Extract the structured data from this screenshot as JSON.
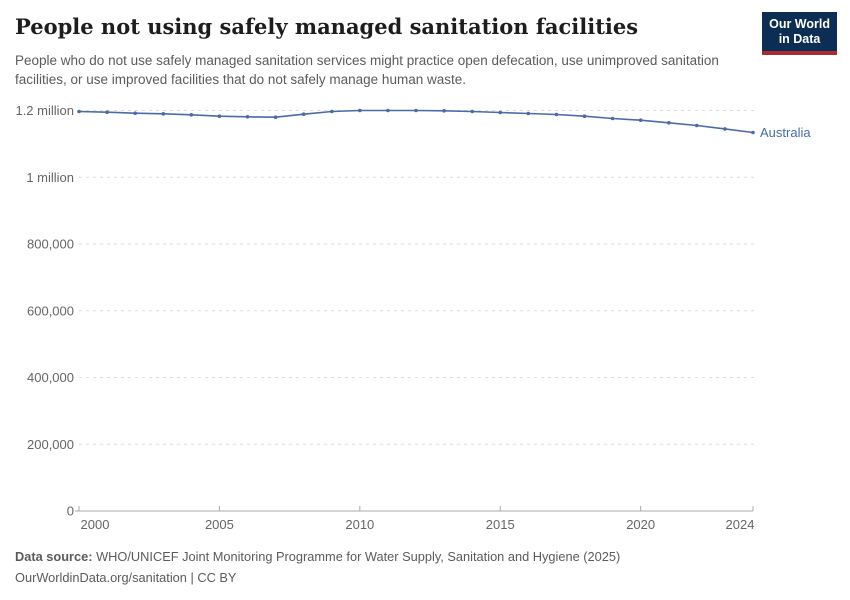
{
  "header": {
    "title": "People not using safely managed sanitation facilities",
    "subtitle": "People who do not use safely managed sanitation services might practice open defecation, use unimproved sanitation facilities, or use improved facilities that do not safely manage human waste.",
    "logo": {
      "line1": "Our World",
      "line2": "in Data",
      "bg_color": "#0d2e54",
      "accent_color": "#a82b35"
    }
  },
  "colors": {
    "series_blue": "#4a6ba8",
    "gridline": "#dcdcdc",
    "axis": "#a8a8a8",
    "tick_text": "#666666"
  },
  "chart_data": {
    "type": "line",
    "title": "People not using safely managed sanitation facilities",
    "xlabel": "",
    "ylabel": "",
    "x": [
      2000,
      2001,
      2002,
      2003,
      2004,
      2005,
      2006,
      2007,
      2008,
      2009,
      2010,
      2011,
      2012,
      2013,
      2014,
      2015,
      2016,
      2017,
      2018,
      2019,
      2020,
      2021,
      2022,
      2023,
      2024
    ],
    "series": [
      {
        "name": "Australia",
        "color": "#4a6ba8",
        "values": [
          1197000,
          1195000,
          1192000,
          1190000,
          1187000,
          1183000,
          1181000,
          1180000,
          1189000,
          1197000,
          1200000,
          1200000,
          1200000,
          1199000,
          1197000,
          1194000,
          1191000,
          1188000,
          1183000,
          1176000,
          1171000,
          1163000,
          1155000,
          1145000,
          1134000
        ]
      }
    ],
    "ylim": [
      0,
      1200000
    ],
    "yticks": [
      {
        "value": 0,
        "label": "0"
      },
      {
        "value": 200000,
        "label": "200,000"
      },
      {
        "value": 400000,
        "label": "400,000"
      },
      {
        "value": 600000,
        "label": "600,000"
      },
      {
        "value": 800000,
        "label": "800,000"
      },
      {
        "value": 1000000,
        "label": "1 million"
      },
      {
        "value": 1200000,
        "label": "1.2 million"
      }
    ],
    "xticks": [
      2000,
      2005,
      2010,
      2015,
      2020,
      2024
    ],
    "grid": "horizontal-dashed",
    "legend": "entity-label-at-line-end"
  },
  "footer": {
    "source_label": "Data source:",
    "source_text": " WHO/UNICEF Joint Monitoring Programme for Water Supply, Sanitation and Hygiene (2025)",
    "license_text": "OurWorldinData.org/sanitation | CC BY"
  }
}
